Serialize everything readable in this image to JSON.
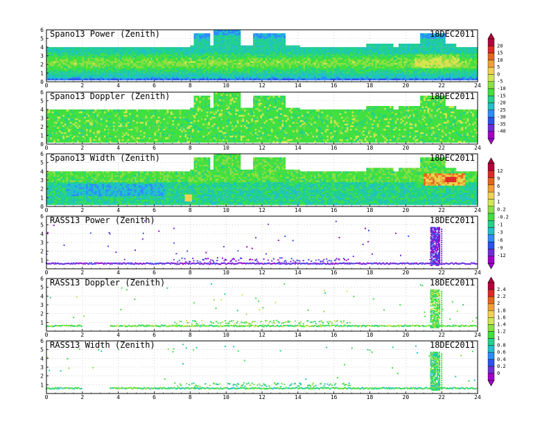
{
  "date_label": "18DEC2011",
  "x_ticks": [
    "0",
    "2",
    "4",
    "6",
    "8",
    "10",
    "12",
    "14",
    "16",
    "18",
    "20",
    "22",
    "24"
  ],
  "colors": {
    "ramp": [
      "#a000c8",
      "#6e2ddc",
      "#2d50f0",
      "#2d8cff",
      "#20c0c8",
      "#20d28c",
      "#40e040",
      "#8ae040",
      "#d2e650",
      "#f0d250",
      "#f0a030",
      "#e8641e",
      "#e02828",
      "#b4003c"
    ],
    "grid": "#b4b4b4"
  },
  "colorbars": [
    {
      "name": "power-doppler-colorbar",
      "labels": [
        "20",
        "15",
        "10",
        "5",
        "0",
        "-5",
        "-10",
        "-15",
        "-20",
        "-25",
        "-30",
        "-35",
        "-40"
      ]
    },
    {
      "name": "width-colorbar",
      "labels": [
        "12",
        "9",
        "6",
        "3",
        "1",
        "0.2",
        "-0.2",
        "-1",
        "-3",
        "-6",
        "-9",
        "-12"
      ]
    },
    {
      "name": "rass-colorbar",
      "labels": [
        "2.4",
        "2.2",
        "2",
        "1.8",
        "1.6",
        "1.4",
        "1.2",
        "1",
        "0.8",
        "0.6",
        "0.4",
        "0.2",
        "0"
      ]
    }
  ],
  "chart_data": [
    {
      "type": "heatmap",
      "title": "Spano13 Power (Zenith)",
      "xlim": [
        0,
        24
      ],
      "ylim": [
        0,
        6
      ],
      "y_ticks": [
        "0",
        "1",
        "2",
        "3",
        "4",
        "5",
        "6"
      ],
      "variant": "spano_power"
    },
    {
      "type": "heatmap",
      "title": "Spano13 Doppler (Zenith)",
      "xlim": [
        0,
        24
      ],
      "ylim": [
        0,
        6
      ],
      "y_ticks": [
        "0",
        "1",
        "2",
        "3",
        "4",
        "5",
        "6"
      ],
      "variant": "spano_doppler"
    },
    {
      "type": "heatmap",
      "title": "Spano13 Width (Zenith)",
      "xlim": [
        0,
        24
      ],
      "ylim": [
        0,
        6
      ],
      "y_ticks": [
        "0",
        "1",
        "2",
        "3",
        "4",
        "5",
        "6"
      ],
      "variant": "spano_width"
    },
    {
      "type": "scatter",
      "title": "RASS13 Power (Zenith)",
      "xlim": [
        0,
        24
      ],
      "ylim": [
        0,
        6
      ],
      "y_ticks": [
        "1",
        "2",
        "3",
        "4",
        "5",
        "6"
      ],
      "variant": "rass_power"
    },
    {
      "type": "scatter",
      "title": "RASS13 Doppler (Zenith)",
      "xlim": [
        0,
        24
      ],
      "ylim": [
        0,
        6
      ],
      "y_ticks": [
        "1",
        "2",
        "3",
        "4",
        "5",
        "6"
      ],
      "variant": "rass_doppler"
    },
    {
      "type": "scatter",
      "title": "RASS13 Width (Zenith)",
      "xlim": [
        0,
        24
      ],
      "ylim": [
        0,
        6
      ],
      "y_ticks": [
        "1",
        "2",
        "3",
        "4",
        "5",
        "6"
      ],
      "variant": "rass_width"
    }
  ]
}
